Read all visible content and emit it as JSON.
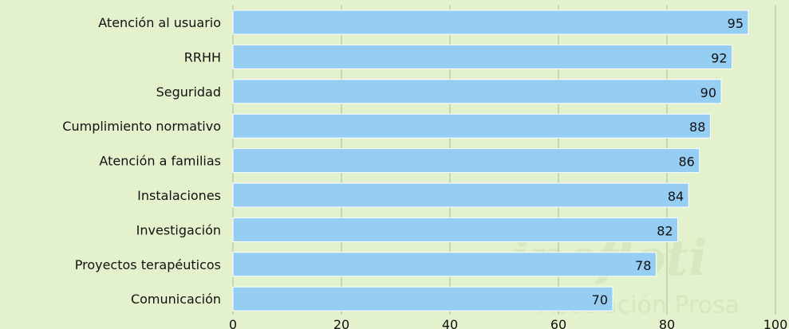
{
  "chart_data": {
    "type": "bar",
    "orientation": "horizontal",
    "categories": [
      "Atención al usuario",
      "RRHH",
      "Seguridad",
      "Cumplimiento normativo",
      "Atención a familias",
      "Instalaciones",
      "Investigación",
      "Proyectos terapéuticos",
      "Comunicación"
    ],
    "values": [
      95,
      92,
      90,
      88,
      86,
      84,
      82,
      78,
      70
    ],
    "xlim": [
      0,
      100
    ],
    "xticks": [
      0,
      20,
      40,
      60,
      80,
      100
    ],
    "grid": true,
    "title": "",
    "xlabel": "",
    "ylabel": ""
  },
  "colors": {
    "background": "#e3f2cd",
    "bar": "#96cdf3",
    "bar_stroke": "#ffffff",
    "grid": "#a9bf93",
    "text": "#111111",
    "watermark": "#d6e8bf"
  },
  "watermark": {
    "main": "inefloti",
    "sub": "Asociación Prosa"
  }
}
